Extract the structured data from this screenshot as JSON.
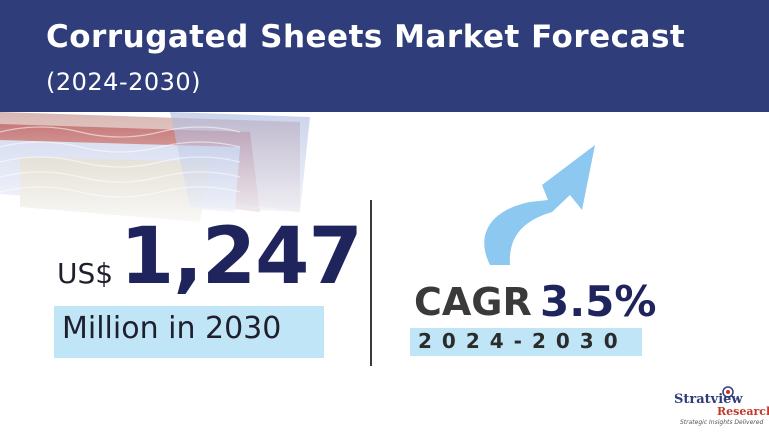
{
  "header": {
    "title": "Corrugated Sheets Market Forecast",
    "subtitle": "(2024-2030)"
  },
  "market": {
    "currency": "US$",
    "value": "1,247",
    "unit": "Million in 2030"
  },
  "cagr": {
    "label": "CAGR",
    "value": "3.5%",
    "period": "2024-2030"
  },
  "brand": {
    "name": "Stratview",
    "sub": "Research",
    "tagline": "Strategic Insights Delivered"
  },
  "colors": {
    "header_bg": "#2f3d7a",
    "highlight_bg": "#bfe5f7",
    "value_text": "#1f255c",
    "arrow": "#8cc8f0"
  },
  "icons": {
    "decoration": "corrugated-sheets-image",
    "arrow": "upward-curved-arrow-icon",
    "logo": "stratview-logo-icon"
  }
}
